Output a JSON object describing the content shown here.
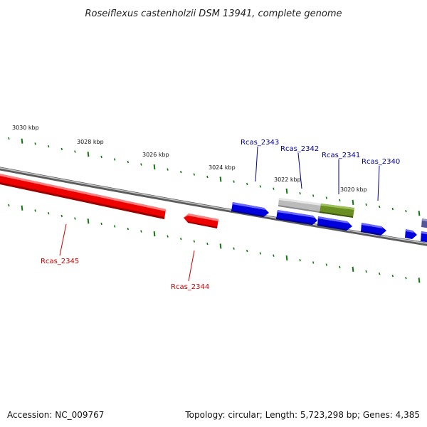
{
  "title": "Roseiflexus castenholzii DSM 13941, complete genome",
  "footer": {
    "accession": "Accession: NC_009767",
    "info": "Topology: circular; Length: 5,723,298 bp; Genes: 4,385"
  },
  "colors": {
    "reverse_strand": "#ee0000",
    "forward_strand": "#0000dd",
    "highlight_gene": "#6b8e23",
    "pseudo_gene": "#bbbbbb",
    "other_gene": "#555599",
    "tick": "#117711",
    "backbone": "#888888",
    "reverse_label": "#cc0000",
    "forward_label": "#000099"
  },
  "scale_labels": [
    "3030 kbp",
    "3028 kbp",
    "3026 kbp",
    "3024 kbp",
    "3022 kbp",
    "3020 kbp"
  ],
  "gene_labels": {
    "rcas_2345": "Rcas_2345",
    "rcas_2344": "Rcas_2344",
    "rcas_2343": "Rcas_2343",
    "rcas_2342": "Rcas_2342",
    "rcas_2341": "Rcas_2341",
    "rcas_2340": "Rcas_2340"
  }
}
